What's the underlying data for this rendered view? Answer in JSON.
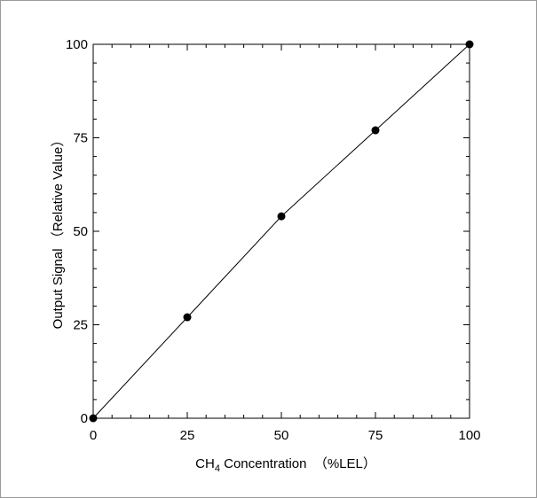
{
  "chart_data": {
    "type": "line",
    "title": "",
    "xlabel_parts": {
      "main": "CH",
      "sub": "4",
      "rest": " Concentration  （%LEL）"
    },
    "ylabel": "Output Signal （Relative Value）",
    "xlim": [
      0,
      100
    ],
    "ylim": [
      0,
      100
    ],
    "x_ticks": [
      0,
      25,
      50,
      75,
      100
    ],
    "y_ticks": [
      0,
      25,
      50,
      75,
      100
    ],
    "x_minor_step": 5,
    "y_minor_step": 5,
    "grid": false,
    "legend": "none",
    "series": [
      {
        "x": [
          0,
          25,
          50,
          75,
          100
        ],
        "y": [
          0,
          27,
          54,
          77,
          100
        ],
        "marker": "filled-circle",
        "color": "#000000"
      }
    ]
  }
}
